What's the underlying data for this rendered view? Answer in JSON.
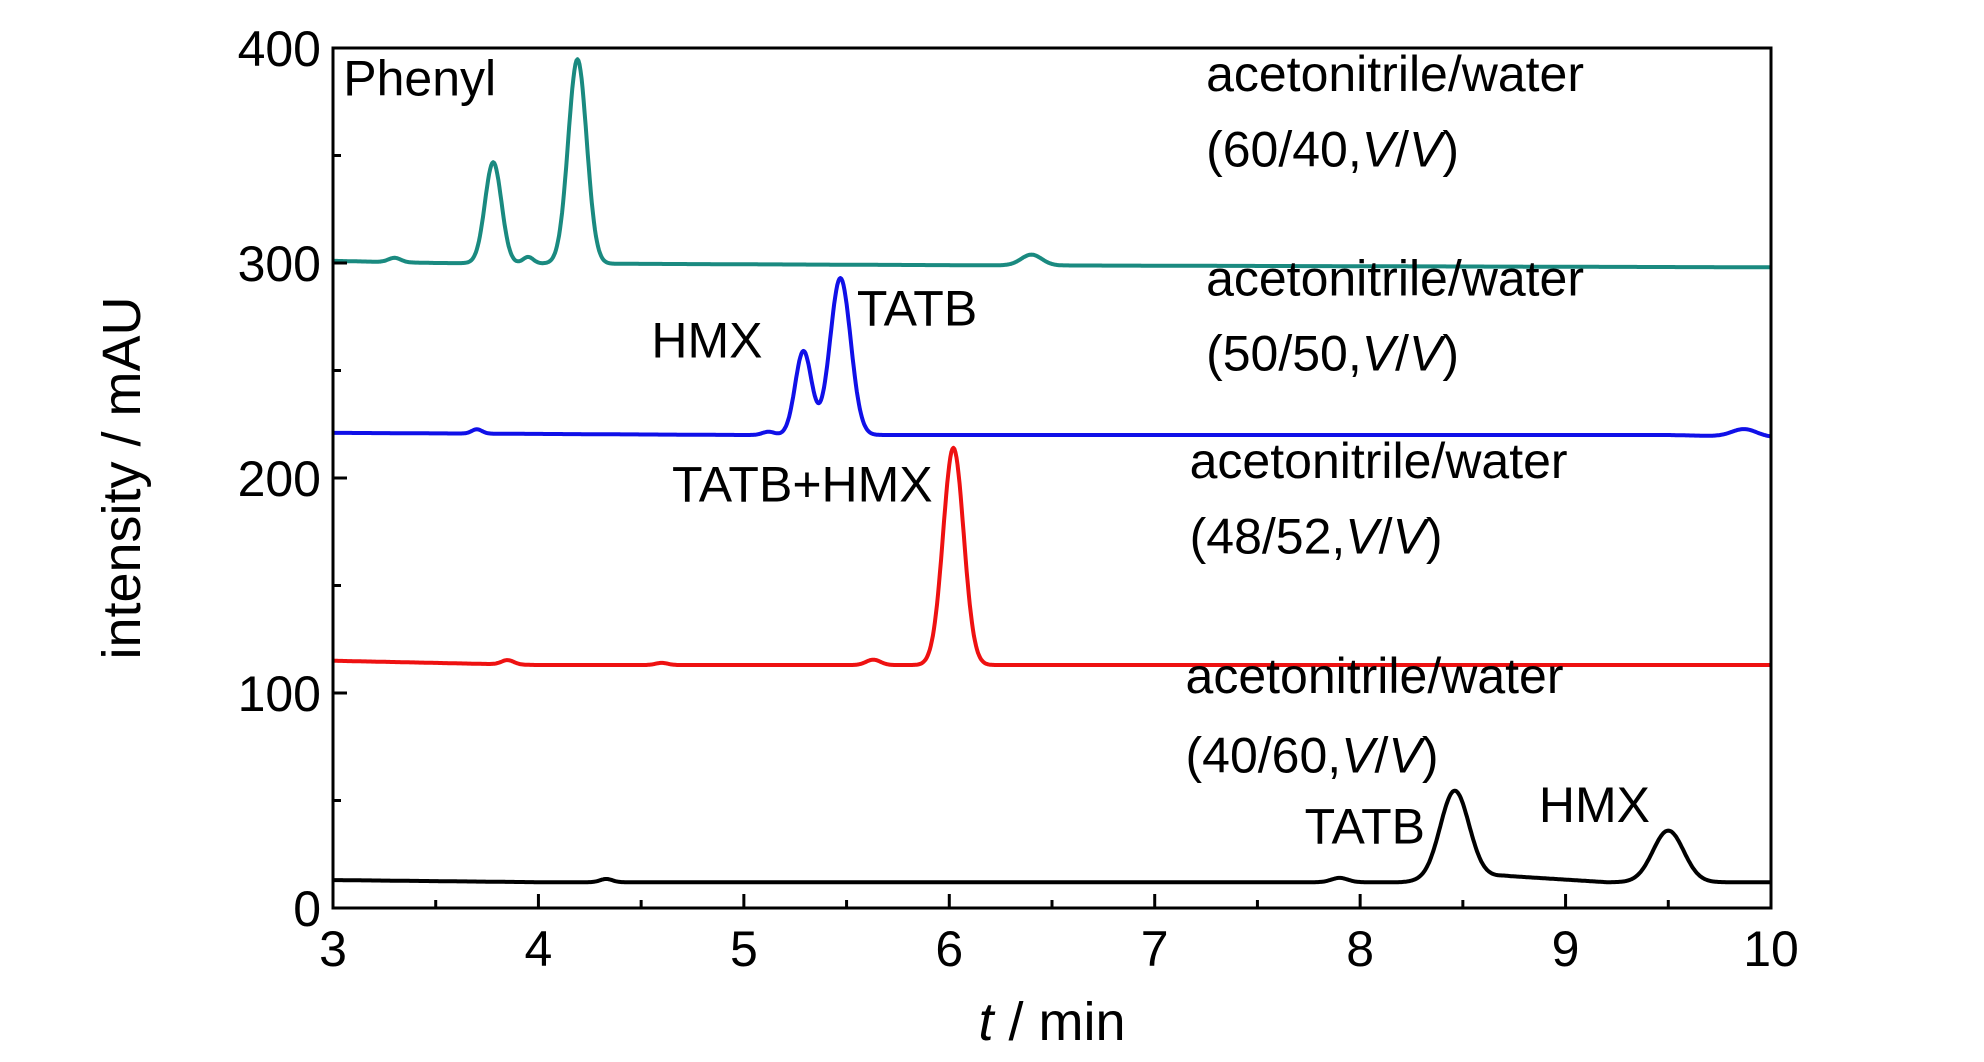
{
  "chart_data": {
    "type": "line",
    "title": "",
    "xlabel": {
      "italic": "t",
      "rest": " / min"
    },
    "ylabel": "intensity / mAU",
    "xlim": [
      3,
      10
    ],
    "ylim": [
      0,
      400
    ],
    "xticks": [
      3,
      4,
      5,
      6,
      7,
      8,
      9,
      10
    ],
    "yticks": [
      0,
      100,
      200,
      300,
      400
    ],
    "grid": false,
    "series": [
      {
        "color": "#1a8a80",
        "baseline": [
          [
            3,
            301
          ],
          [
            3.5,
            300
          ],
          [
            6.0,
            299
          ],
          [
            10,
            298
          ]
        ],
        "peaks": [
          {
            "t": 3.3,
            "h": 2,
            "w": 0.03
          },
          {
            "t": 3.78,
            "h": 47,
            "w": 0.04
          },
          {
            "t": 3.95,
            "h": 3,
            "w": 0.025
          },
          {
            "t": 4.19,
            "h": 95,
            "w": 0.045
          },
          {
            "t": 6.4,
            "h": 5,
            "w": 0.05
          }
        ]
      },
      {
        "color": "#1010e8",
        "baseline": [
          [
            3,
            221
          ],
          [
            5.0,
            220
          ],
          [
            9.5,
            220
          ],
          [
            10,
            219
          ]
        ],
        "peaks": [
          {
            "t": 3.7,
            "h": 2,
            "w": 0.025
          },
          {
            "t": 5.12,
            "h": 1.5,
            "w": 0.03
          },
          {
            "t": 5.29,
            "h": 39,
            "w": 0.04
          },
          {
            "t": 5.47,
            "h": 73,
            "w": 0.05
          },
          {
            "t": 9.87,
            "h": 3.5,
            "w": 0.06
          }
        ]
      },
      {
        "color": "#ee1111",
        "baseline": [
          [
            3,
            115
          ],
          [
            4.0,
            113
          ],
          [
            8.0,
            113
          ],
          [
            10,
            113
          ]
        ],
        "peaks": [
          {
            "t": 3.85,
            "h": 2,
            "w": 0.03
          },
          {
            "t": 4.6,
            "h": 1,
            "w": 0.03
          },
          {
            "t": 5.63,
            "h": 2.5,
            "w": 0.035
          },
          {
            "t": 6.02,
            "h": 101,
            "w": 0.05
          }
        ]
      },
      {
        "color": "#000000",
        "baseline": [
          [
            3,
            13
          ],
          [
            4.0,
            12
          ],
          [
            8.2,
            12
          ],
          [
            8.7,
            15
          ],
          [
            9.2,
            12
          ],
          [
            10,
            12
          ]
        ],
        "peaks": [
          {
            "t": 4.33,
            "h": 1.5,
            "w": 0.03
          },
          {
            "t": 7.9,
            "h": 2,
            "w": 0.04
          },
          {
            "t": 8.46,
            "h": 41,
            "w": 0.07
          },
          {
            "t": 9.5,
            "h": 24,
            "w": 0.075
          }
        ]
      }
    ],
    "annotations": [
      {
        "text": "Phenyl",
        "x": 3.05,
        "y": 378,
        "anchor": "start"
      },
      {
        "text": "acetonitrile/water",
        "x": 7.25,
        "y": 380,
        "anchor": "start"
      },
      {
        "text": "(60/40,",
        "italic": "V",
        "rest": "/",
        "italic2": "V",
        "rest2": ")",
        "x": 7.25,
        "y": 345,
        "anchor": "start"
      },
      {
        "text": "HMX",
        "x": 4.55,
        "y": 256,
        "anchor": "start"
      },
      {
        "text": "TATB",
        "x": 5.55,
        "y": 271,
        "anchor": "start"
      },
      {
        "text": "acetonitrile/water",
        "x": 7.25,
        "y": 285,
        "anchor": "start"
      },
      {
        "text": "(50/50,",
        "italic": "V",
        "rest": "/",
        "italic2": "V",
        "rest2": ")",
        "x": 7.25,
        "y": 250,
        "anchor": "start"
      },
      {
        "text": "TATB+HMX",
        "x": 4.65,
        "y": 189,
        "anchor": "start"
      },
      {
        "text": "acetonitrile/water",
        "x": 7.17,
        "y": 200,
        "anchor": "start"
      },
      {
        "text": "(48/52,",
        "italic": "V",
        "rest": "/",
        "italic2": "V",
        "rest2": ")",
        "x": 7.17,
        "y": 165,
        "anchor": "start"
      },
      {
        "text": "acetonitrile/water",
        "x": 7.15,
        "y": 100,
        "anchor": "start"
      },
      {
        "text": "(40/60,",
        "italic": "V",
        "rest": "/",
        "italic2": "V",
        "rest2": ")",
        "x": 7.15,
        "y": 63,
        "anchor": "start"
      },
      {
        "text": "TATB",
        "x": 7.73,
        "y": 30,
        "anchor": "start"
      },
      {
        "text": "HMX",
        "x": 8.87,
        "y": 40,
        "anchor": "start"
      }
    ]
  }
}
